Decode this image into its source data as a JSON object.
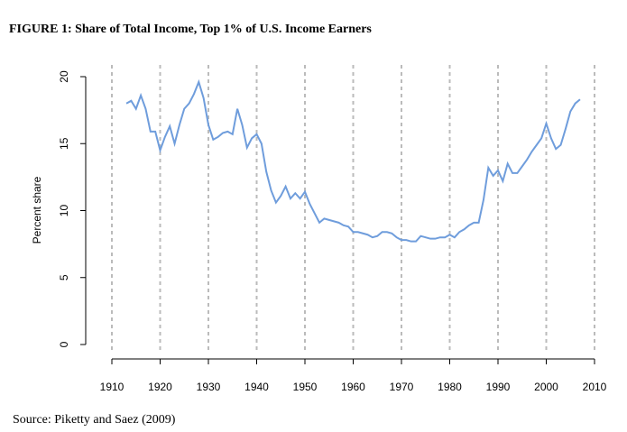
{
  "chart_data": {
    "type": "line",
    "title": "FIGURE 1: Share of Total Income, Top 1% of U.S. Income Earners",
    "source": "Source: Piketty and Saez (2009)",
    "y_label": "Percent share",
    "x": [
      1913,
      1914,
      1915,
      1916,
      1917,
      1918,
      1919,
      1920,
      1921,
      1922,
      1923,
      1924,
      1925,
      1926,
      1927,
      1928,
      1929,
      1930,
      1931,
      1932,
      1933,
      1934,
      1935,
      1936,
      1937,
      1938,
      1939,
      1940,
      1941,
      1942,
      1943,
      1944,
      1945,
      1946,
      1947,
      1948,
      1949,
      1950,
      1951,
      1952,
      1953,
      1954,
      1955,
      1956,
      1957,
      1958,
      1959,
      1960,
      1961,
      1962,
      1963,
      1964,
      1965,
      1966,
      1967,
      1968,
      1969,
      1970,
      1971,
      1972,
      1973,
      1974,
      1975,
      1976,
      1977,
      1978,
      1979,
      1980,
      1981,
      1982,
      1983,
      1984,
      1985,
      1986,
      1987,
      1988,
      1989,
      1990,
      1991,
      1992,
      1993,
      1994,
      1995,
      1996,
      1997,
      1998,
      1999,
      2000,
      2001,
      2002,
      2003,
      2004,
      2005,
      2006,
      2007
    ],
    "series": [
      {
        "name": "Top 1% share",
        "color": "#6f9ddc",
        "values": [
          18.0,
          18.2,
          17.6,
          18.6,
          17.6,
          15.9,
          15.9,
          14.5,
          15.5,
          16.3,
          15.0,
          16.4,
          17.6,
          18.0,
          18.7,
          19.6,
          18.4,
          16.4,
          15.3,
          15.5,
          15.8,
          15.9,
          15.7,
          17.6,
          16.4,
          14.7,
          15.4,
          15.7,
          15.0,
          12.9,
          11.5,
          10.6,
          11.1,
          11.8,
          10.9,
          11.3,
          10.9,
          11.4,
          10.5,
          9.8,
          9.1,
          9.4,
          9.3,
          9.2,
          9.1,
          8.9,
          8.8,
          8.4,
          8.4,
          8.3,
          8.2,
          8.0,
          8.1,
          8.4,
          8.4,
          8.3,
          8.0,
          7.8,
          7.8,
          7.7,
          7.7,
          8.1,
          8.0,
          7.9,
          7.9,
          8.0,
          8.0,
          8.2,
          8.0,
          8.4,
          8.6,
          8.9,
          9.1,
          9.1,
          10.8,
          13.2,
          12.6,
          13.0,
          12.2,
          13.5,
          12.8,
          12.8,
          13.3,
          13.8,
          14.4,
          14.9,
          15.4,
          16.5,
          15.4,
          14.6,
          14.9,
          16.1,
          17.4,
          18.0,
          18.3
        ]
      }
    ],
    "xlim": [
      1910,
      2010
    ],
    "xticks": [
      1910,
      1920,
      1930,
      1940,
      1950,
      1960,
      1970,
      1980,
      1990,
      2000,
      2010
    ],
    "ylim": [
      0,
      20
    ],
    "yticks": [
      0,
      5,
      10,
      15,
      20
    ],
    "grid": "x"
  }
}
